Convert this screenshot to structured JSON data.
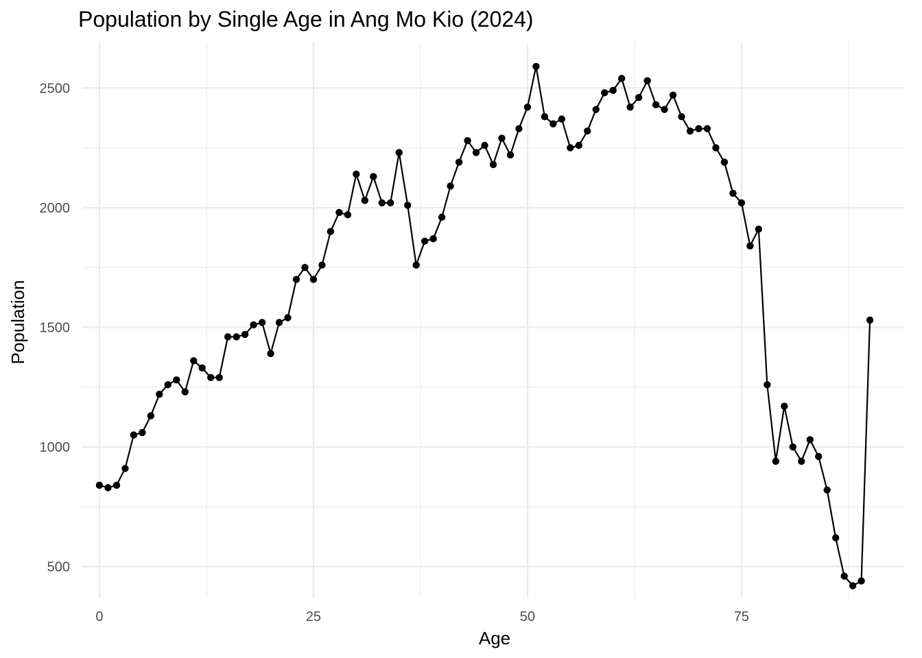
{
  "chart_data": {
    "type": "line",
    "title": "Population by Single Age in Ang Mo Kio (2024)",
    "xlabel": "Age",
    "ylabel": "Population",
    "xlim": [
      -2,
      94
    ],
    "ylim": [
      370,
      2690
    ],
    "x_ticks": [
      0,
      25,
      50,
      75
    ],
    "x_minor_ticks": [
      12.5,
      37.5,
      62.5,
      87.5
    ],
    "y_ticks": [
      500,
      1000,
      1500,
      2000,
      2500
    ],
    "y_minor_ticks": [
      750,
      1250,
      1750,
      2250
    ],
    "grid": true,
    "legend": "none",
    "x": [
      0,
      1,
      2,
      3,
      4,
      5,
      6,
      7,
      8,
      9,
      10,
      11,
      12,
      13,
      14,
      15,
      16,
      17,
      18,
      19,
      20,
      21,
      22,
      23,
      24,
      25,
      26,
      27,
      28,
      29,
      30,
      31,
      32,
      33,
      34,
      35,
      36,
      37,
      38,
      39,
      40,
      41,
      42,
      43,
      44,
      45,
      46,
      47,
      48,
      49,
      50,
      51,
      52,
      53,
      54,
      55,
      56,
      57,
      58,
      59,
      60,
      61,
      62,
      63,
      64,
      65,
      66,
      67,
      68,
      69,
      70,
      71,
      72,
      73,
      74,
      75,
      76,
      77,
      78,
      79,
      80,
      81,
      82,
      83,
      84,
      85,
      86,
      87,
      88,
      89,
      90
    ],
    "series": [
      {
        "values": [
          840,
          830,
          840,
          910,
          1050,
          1060,
          1130,
          1220,
          1260,
          1280,
          1230,
          1360,
          1330,
          1290,
          1290,
          1460,
          1460,
          1470,
          1510,
          1520,
          1390,
          1520,
          1540,
          1700,
          1750,
          1700,
          1760,
          1900,
          1980,
          1970,
          2140,
          2030,
          2130,
          2020,
          2020,
          2230,
          2010,
          1760,
          1860,
          1870,
          1960,
          2090,
          2190,
          2280,
          2230,
          2260,
          2180,
          2290,
          2220,
          2330,
          2420,
          2590,
          2380,
          2350,
          2370,
          2250,
          2260,
          2320,
          2410,
          2480,
          2490,
          2540,
          2420,
          2460,
          2530,
          2430,
          2410,
          2470,
          2380,
          2320,
          2330,
          2330,
          2250,
          2190,
          2060,
          2020,
          1840,
          1910,
          1260,
          940,
          1170,
          1000,
          940,
          1030,
          960,
          820,
          620,
          460,
          420,
          440,
          1530
        ],
        "color": "#000000"
      }
    ]
  }
}
